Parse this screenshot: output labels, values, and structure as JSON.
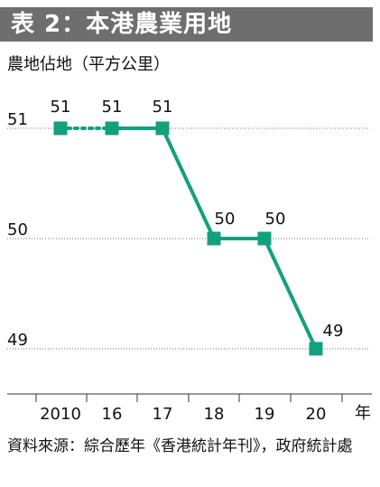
{
  "header": {
    "title": "表 2：本港農業用地"
  },
  "subtitle": "農地佔地（平方公里）",
  "chart_data": {
    "type": "line",
    "categories": [
      "2010",
      "16",
      "17",
      "18",
      "19",
      "20"
    ],
    "values": [
      51,
      51,
      51,
      50,
      50,
      49
    ],
    "value_labels": [
      "51",
      "51",
      "51",
      "50",
      "50",
      "49"
    ],
    "dotted_segments": [
      [
        0,
        1
      ]
    ],
    "y_ticks": [
      51,
      50,
      49
    ],
    "y_tick_labels": [
      "51",
      "50",
      "49"
    ],
    "ylim": [
      49,
      51
    ],
    "x_unit": "年",
    "colors": {
      "line": "#13a07c",
      "grid": "#777777",
      "axis": "#333333"
    },
    "grid": true
  },
  "source": "資料來源：綜合歷年《香港統計年刊》，政府統計處"
}
